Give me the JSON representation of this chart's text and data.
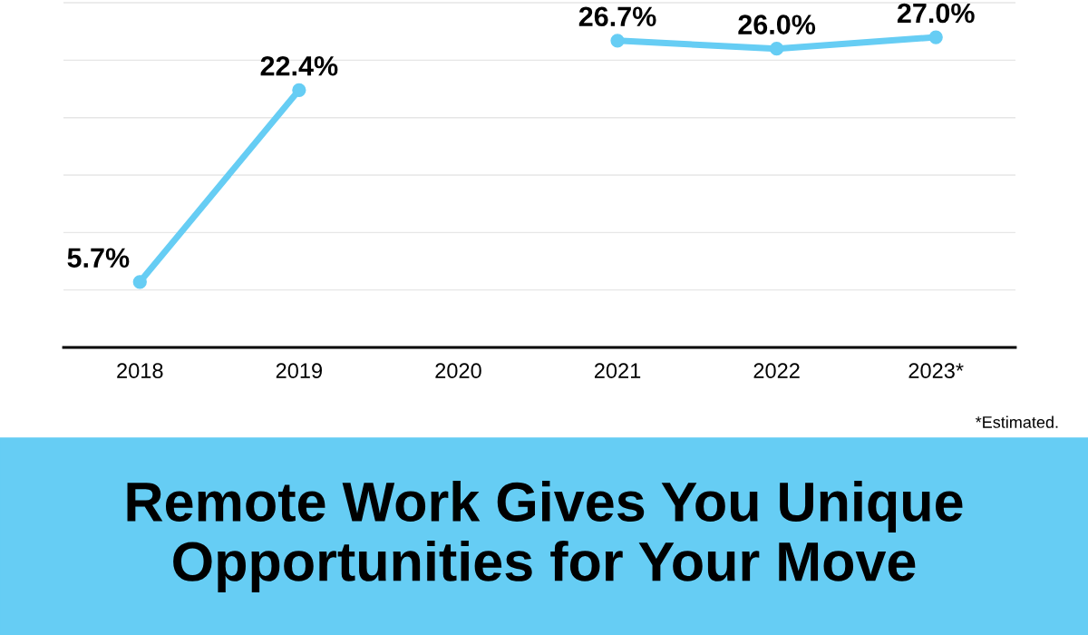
{
  "chart_data": {
    "type": "line",
    "title": "Remote Work Gives You Unique Opportunities for Your Move",
    "categories": [
      "2018",
      "2019",
      "2020",
      "2021",
      "2022",
      "2023*"
    ],
    "series": [
      {
        "color": "#66cdf4",
        "values": [
          5.7,
          22.4,
          null,
          26.7,
          26.0,
          27.0
        ],
        "value_labels": [
          "5.7%",
          "22.4%",
          null,
          "26.7%",
          "26.0%",
          "27.0%"
        ]
      }
    ],
    "grid": "y",
    "marker": "circle",
    "line_style": "solid",
    "annotations": [
      "*Estimated."
    ]
  }
}
